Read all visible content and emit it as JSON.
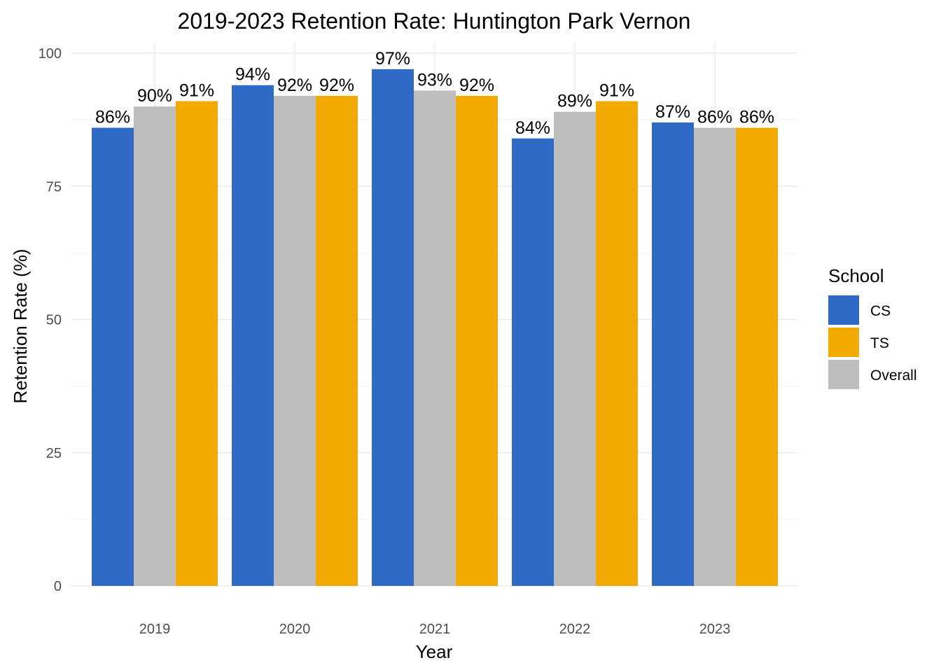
{
  "chart_data": {
    "type": "bar",
    "title": "2019-2023 Retention Rate: Huntington Park Vernon",
    "xlabel": "Year",
    "ylabel": "Retention Rate (%)",
    "categories": [
      "2019",
      "2020",
      "2021",
      "2022",
      "2023"
    ],
    "ylim": [
      0,
      100
    ],
    "yticks": [
      0,
      25,
      50,
      75,
      100
    ],
    "grid": true,
    "legend": {
      "title": "School",
      "position": "right",
      "entries": [
        "CS",
        "TS",
        "Overall"
      ]
    },
    "bar_order": [
      "CS",
      "Overall",
      "TS"
    ],
    "series": [
      {
        "name": "CS",
        "color": "#2f6ac6",
        "values": [
          86,
          94,
          97,
          84,
          87
        ],
        "labels": [
          "86%",
          "94%",
          "97%",
          "84%",
          "87%"
        ]
      },
      {
        "name": "Overall",
        "color": "#bebebe",
        "values": [
          90,
          92,
          93,
          89,
          86
        ],
        "labels": [
          "90%",
          "92%",
          "93%",
          "89%",
          "86%"
        ]
      },
      {
        "name": "TS",
        "color": "#f2a900",
        "values": [
          91,
          92,
          92,
          91,
          86
        ],
        "labels": [
          "91%",
          "92%",
          "92%",
          "91%",
          "86%"
        ]
      }
    ]
  }
}
